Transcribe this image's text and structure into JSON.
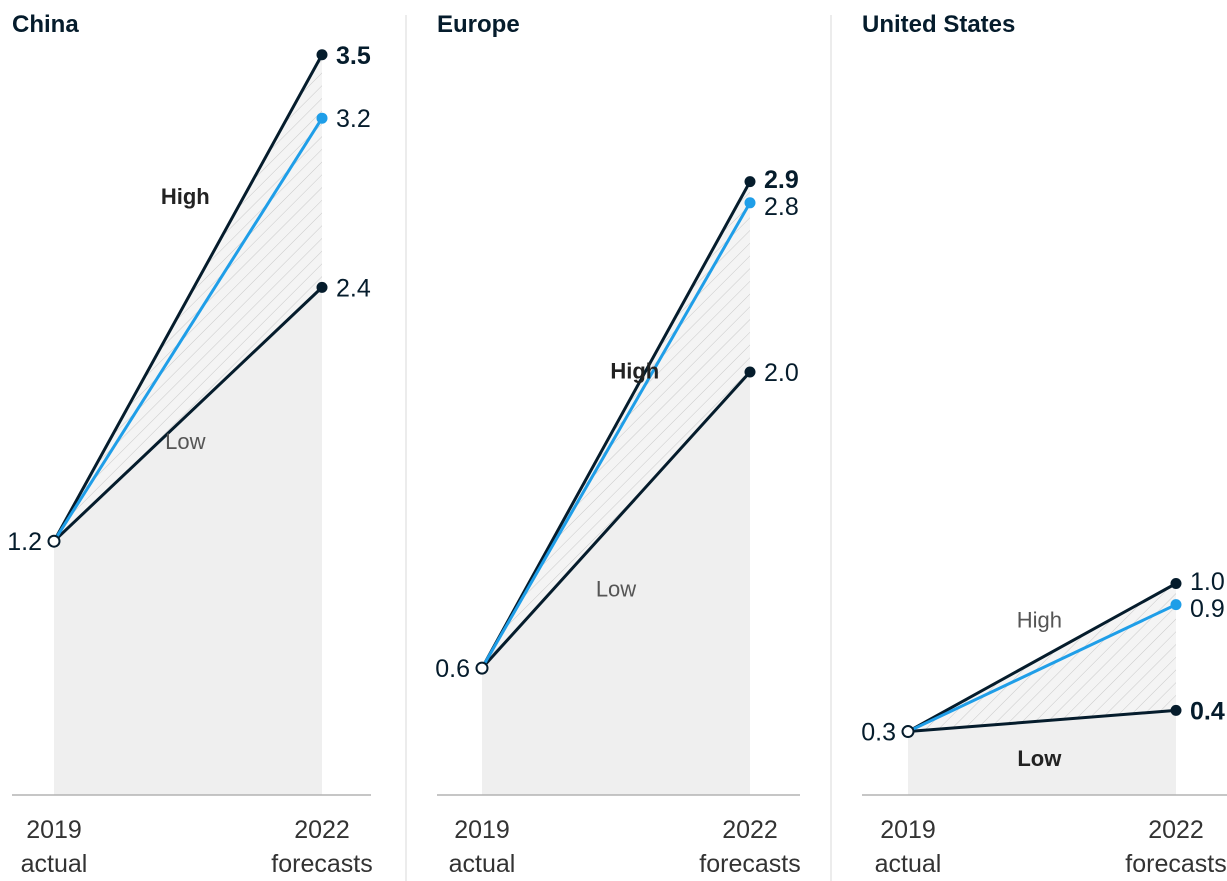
{
  "chart_data": [
    {
      "type": "line",
      "title": "China",
      "categories": [
        "2019\nactual",
        "2022\nforecasts"
      ],
      "tick_labels": [
        [
          "2019",
          "actual"
        ],
        [
          "2022",
          "forecasts"
        ]
      ],
      "start_value": 1.2,
      "start_label": "1.2",
      "series": [
        {
          "name": "High",
          "values": [
            1.2,
            3.5
          ],
          "end_label": "3.5",
          "end_bold": true
        },
        {
          "name": "",
          "values": [
            1.2,
            3.2
          ],
          "end_label": "3.2",
          "end_bold": false
        },
        {
          "name": "Low",
          "values": [
            1.2,
            2.4
          ],
          "end_label": "2.4",
          "end_bold": false
        }
      ],
      "high_label": "High",
      "low_label": "Low",
      "emphasis": "high"
    },
    {
      "type": "line",
      "title": "Europe",
      "categories": [
        "2019\nactual",
        "2022\nforecasts"
      ],
      "tick_labels": [
        [
          "2019",
          "actual"
        ],
        [
          "2022",
          "forecasts"
        ]
      ],
      "start_value": 0.6,
      "start_label": "0.6",
      "series": [
        {
          "name": "High",
          "values": [
            0.6,
            2.9
          ],
          "end_label": "2.9",
          "end_bold": true
        },
        {
          "name": "",
          "values": [
            0.6,
            2.8
          ],
          "end_label": "2.8",
          "end_bold": false
        },
        {
          "name": "Low",
          "values": [
            0.6,
            2.0
          ],
          "end_label": "2.0",
          "end_bold": false
        }
      ],
      "high_label": "High",
      "low_label": "Low",
      "emphasis": "high"
    },
    {
      "type": "line",
      "title": "United States",
      "categories": [
        "2019\nactual",
        "2022\nforecasts"
      ],
      "tick_labels": [
        [
          "2019",
          "actual"
        ],
        [
          "2022",
          "forecasts"
        ]
      ],
      "start_value": 0.3,
      "start_label": "0.3",
      "series": [
        {
          "name": "High",
          "values": [
            0.3,
            1.0
          ],
          "end_label": "1.0",
          "end_bold": false
        },
        {
          "name": "",
          "values": [
            0.3,
            0.9
          ],
          "end_label": "0.9",
          "end_bold": false
        },
        {
          "name": "Low",
          "values": [
            0.3,
            0.4
          ],
          "end_label": "0.4",
          "end_bold": true
        }
      ],
      "high_label": "High",
      "low_label": "Low",
      "emphasis": "low"
    }
  ],
  "colors": {
    "dark": "#051c2c",
    "accent": "#1f9ee8",
    "area": "#efefef",
    "hatch": "#c9c9c9",
    "axis": "#b3b3b3"
  }
}
